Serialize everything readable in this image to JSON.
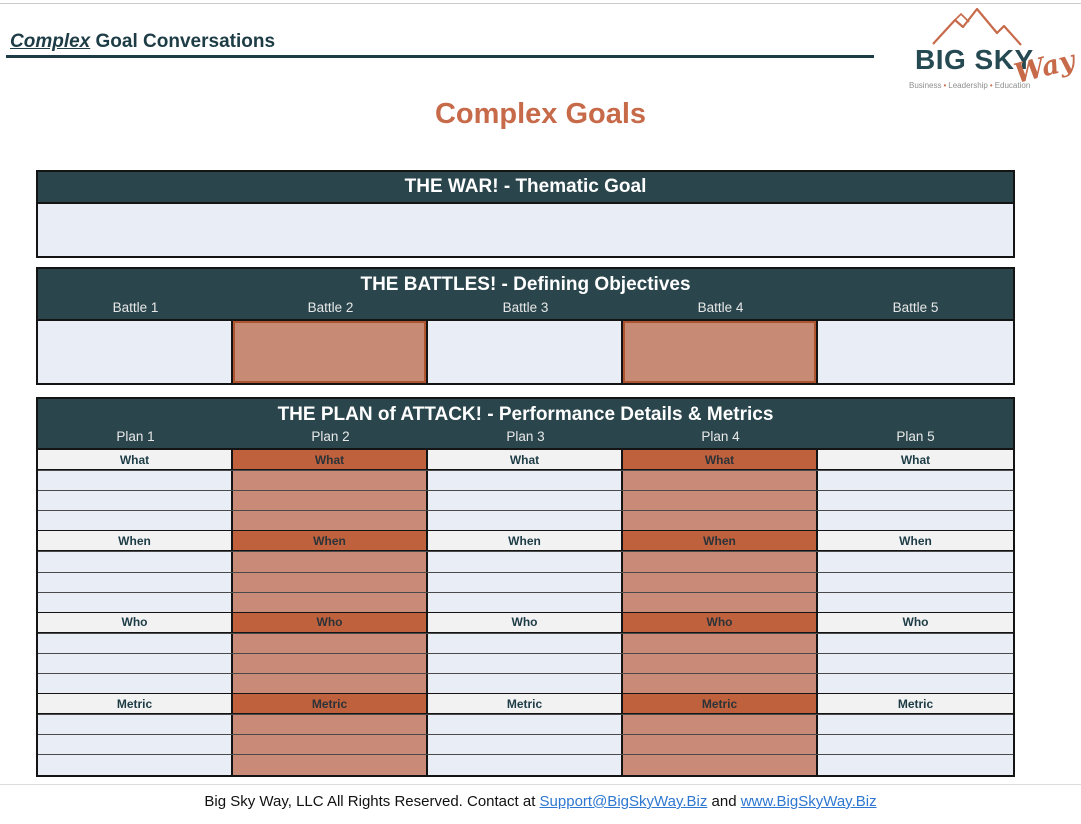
{
  "page": {
    "header_title_italic": "Complex",
    "header_title_rest": " Goal Conversations",
    "main_title": "Complex Goals"
  },
  "logo": {
    "name": "BIG SKY",
    "script": "Way",
    "mountain_icon_color": "#c76a4a",
    "tagline_items": [
      "Business",
      "Leadership",
      "Education"
    ],
    "tagline_separator": "•"
  },
  "war": {
    "title": "THE WAR! - Thematic Goal",
    "value": ""
  },
  "battles": {
    "title": "THE BATTLES! - Defining Objectives",
    "columns": [
      "Battle 1",
      "Battle 2",
      "Battle 3",
      "Battle 4",
      "Battle 5"
    ],
    "values": [
      "",
      "",
      "",
      "",
      ""
    ],
    "highlighted_column_indexes": [
      1,
      3
    ]
  },
  "plan": {
    "title": "THE PLAN of ATTACK! - Performance Details & Metrics",
    "columns": [
      "Plan 1",
      "Plan 2",
      "Plan 3",
      "Plan 4",
      "Plan 5"
    ],
    "row_groups": [
      "What",
      "When",
      "Who",
      "Metric"
    ],
    "empty_rows_per_group": 3,
    "highlighted_column_indexes": [
      1,
      3
    ]
  },
  "footer": {
    "text_before": "Big Sky Way, LLC All Rights Reserved. Contact at ",
    "link_email": "Support@BigSkyWay.Biz",
    "text_middle": " and ",
    "link_site": "www.BigSkyWay.Biz"
  },
  "colors": {
    "header_bar": "#2a464c",
    "accent_orange": "#c76a4a",
    "label_orange": "#c0613d",
    "cell_salmon": "#c98b77",
    "battle_salmon": "#c78a75",
    "cell_lavender": "#e9edf6",
    "label_light": "#f2f2f2",
    "heading_teal": "#1d3c46",
    "link_blue": "#2e77d0"
  }
}
